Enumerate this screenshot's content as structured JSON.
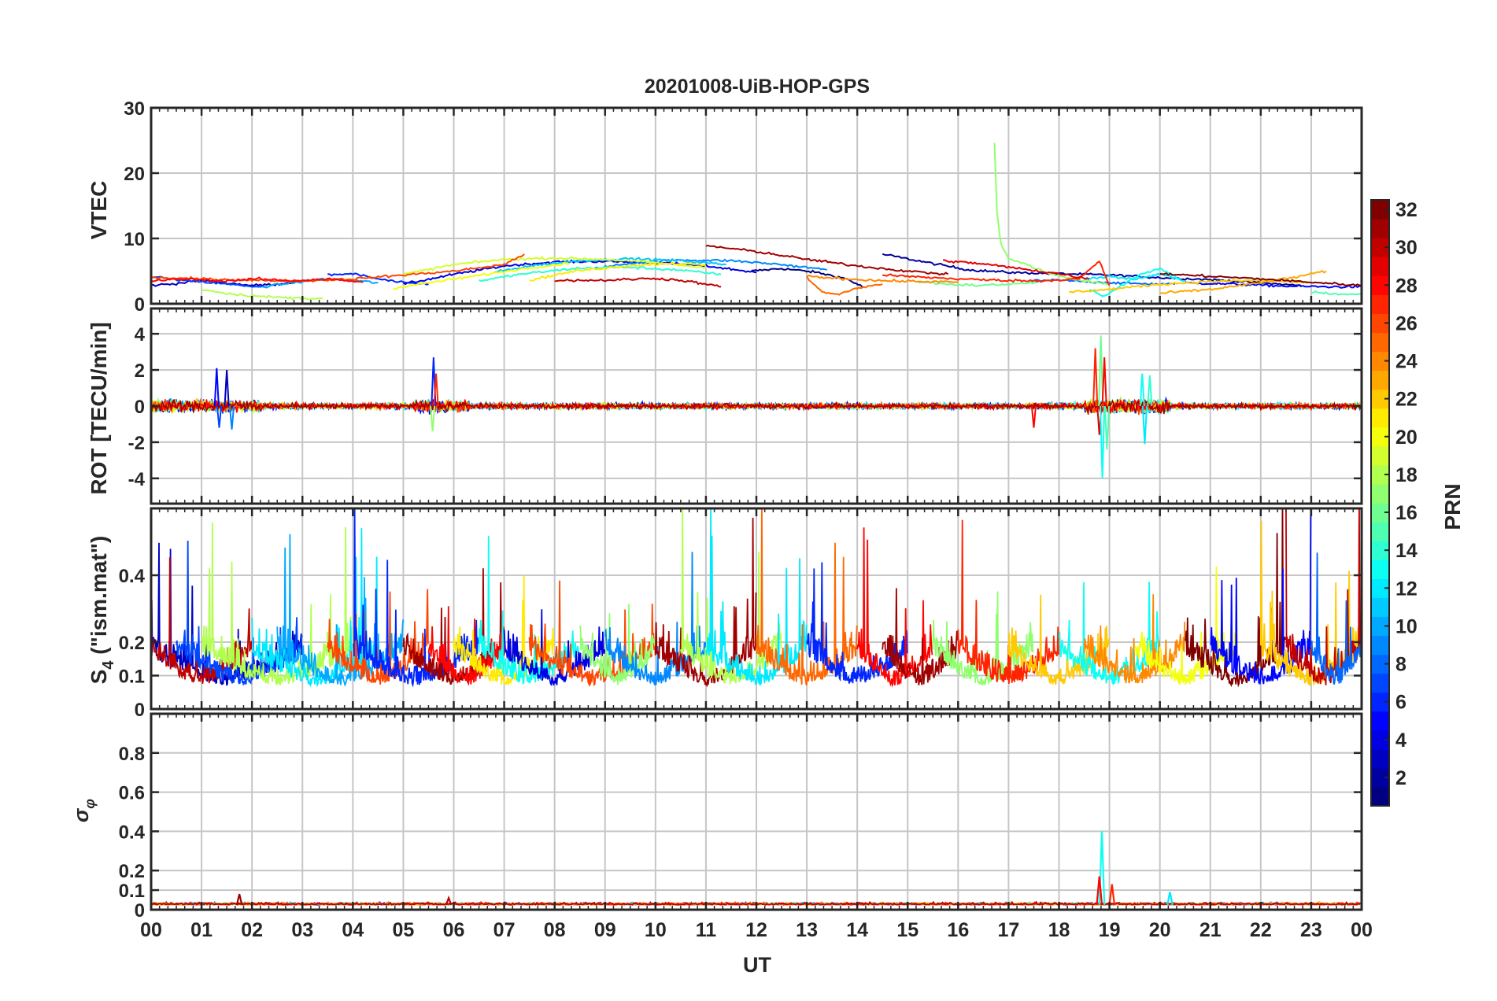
{
  "title": "20201008-UiB-HOP-GPS",
  "chart_data": {
    "type": "line",
    "x_label": "UT",
    "x_ticks": [
      "00",
      "01",
      "02",
      "03",
      "04",
      "05",
      "06",
      "07",
      "08",
      "09",
      "10",
      "11",
      "12",
      "13",
      "14",
      "15",
      "16",
      "17",
      "18",
      "19",
      "20",
      "21",
      "22",
      "23",
      "00"
    ],
    "xlim": [
      0,
      24
    ],
    "panels": [
      {
        "id": "vtec",
        "ylabel": "VTEC",
        "ylim": [
          0,
          30
        ],
        "yticks": [
          0,
          10,
          20,
          30
        ],
        "ytick_labels": [
          "0",
          "10",
          "20",
          "30"
        ],
        "series": [
          {
            "prn": 1,
            "x": [
              11.9,
              12.5,
              13.2,
              13.8,
              14.1
            ],
            "y": [
              5.0,
              5.4,
              4.8,
              3.8,
              2.6
            ]
          },
          {
            "prn": 2,
            "x": [
              14.5,
              15.4,
              16.2,
              17.0,
              18.0,
              19.0,
              20.0,
              21.0,
              22.0,
              22.8
            ],
            "y": [
              7.6,
              6.3,
              5.2,
              4.8,
              4.6,
              4.4,
              4.0,
              3.7,
              3.2,
              2.8
            ]
          },
          {
            "prn": 3,
            "x": [
              0.0,
              0.5,
              1.0,
              1.5,
              2.0,
              2.5,
              3.0
            ],
            "y": [
              2.8,
              3.1,
              3.6,
              3.2,
              2.8,
              3.0,
              3.5
            ]
          },
          {
            "prn": 4,
            "x": [
              5.0,
              6.0,
              7.0,
              8.0,
              9.0,
              10.0,
              11.0,
              12.0
            ],
            "y": [
              3.0,
              4.5,
              5.8,
              6.4,
              6.5,
              6.3,
              5.8,
              4.8
            ]
          },
          {
            "prn": 5,
            "x": [
              20.5,
              21.5,
              22.5,
              23.3,
              24.0
            ],
            "y": [
              3.2,
              3.0,
              2.7,
              2.6,
              2.6
            ]
          },
          {
            "prn": 6,
            "x": [
              3.5,
              4.0,
              4.5,
              5.0,
              5.5
            ],
            "y": [
              4.4,
              4.6,
              3.8,
              3.2,
              3.0
            ]
          },
          {
            "prn": 7,
            "x": [
              0.0,
              0.6,
              1.2,
              1.8,
              2.3
            ],
            "y": [
              4.2,
              3.6,
              3.2,
              2.8,
              2.5
            ]
          },
          {
            "prn": 8,
            "x": [
              17.4,
              18.0,
              18.8,
              19.5,
              20.3
            ],
            "y": [
              3.5,
              3.6,
              3.3,
              3.1,
              3.0
            ]
          },
          {
            "prn": 9,
            "x": [
              8.8,
              9.6,
              10.5,
              11.5,
              12.5,
              13.4
            ],
            "y": [
              5.4,
              6.3,
              6.7,
              6.6,
              6.0,
              5.2
            ]
          },
          {
            "prn": 10,
            "x": [
              2.2,
              2.8,
              3.4,
              4.0,
              4.5
            ],
            "y": [
              2.6,
              3.2,
              3.8,
              3.6,
              3.2
            ]
          },
          {
            "prn": 11,
            "x": [
              6.8,
              7.5,
              8.5,
              9.5,
              10.5,
              11.4
            ],
            "y": [
              4.8,
              5.8,
              6.6,
              6.9,
              6.6,
              6.0
            ]
          },
          {
            "prn": 12,
            "x": [
              18.5,
              19.0,
              19.5,
              20.0,
              20.5
            ],
            "y": [
              3.8,
              4.2,
              3.7,
              4.6,
              3.5
            ]
          },
          {
            "prn": 13,
            "x": [
              18.6,
              18.9,
              19.2,
              19.6,
              20.0,
              20.4
            ],
            "y": [
              2.2,
              1.2,
              2.6,
              4.5,
              5.4,
              3.8
            ]
          },
          {
            "prn": 14,
            "x": [
              6.5,
              7.4,
              8.4,
              9.4,
              10.4,
              11.3
            ],
            "y": [
              3.5,
              4.6,
              5.4,
              5.6,
              5.2,
              4.5
            ]
          },
          {
            "prn": 15,
            "x": [
              23.0,
              23.5,
              24.0
            ],
            "y": [
              1.8,
              1.5,
              1.4
            ]
          },
          {
            "prn": 16,
            "x": [
              15.2,
              15.8,
              16.4,
              17.0,
              17.6
            ],
            "y": [
              3.4,
              3.0,
              2.8,
              3.0,
              3.3
            ]
          },
          {
            "prn": 17,
            "x": [
              16.72,
              16.77,
              16.85,
              17.0,
              17.3,
              17.8,
              18.4,
              19.0
            ],
            "y": [
              24.6,
              14.0,
              9.0,
              7.0,
              6.2,
              4.6,
              3.6,
              3.0
            ]
          },
          {
            "prn": 18,
            "x": [
              1.0,
              1.6,
              2.2,
              2.8,
              3.4
            ],
            "y": [
              2.2,
              1.5,
              1.1,
              0.9,
              0.8
            ]
          },
          {
            "prn": 19,
            "x": [
              5.0,
              6.0,
              7.0,
              8.0,
              9.0,
              10.0,
              11.0
            ],
            "y": [
              4.5,
              6.0,
              6.8,
              7.0,
              6.8,
              6.3,
              5.5
            ]
          },
          {
            "prn": 20,
            "x": [
              4.8,
              5.5,
              6.2,
              6.9,
              7.6,
              8.3
            ],
            "y": [
              2.4,
              3.2,
              4.0,
              4.8,
              5.6,
              6.2
            ]
          },
          {
            "prn": 21,
            "x": [
              7.5,
              8.4,
              9.4,
              10.3,
              11.0
            ],
            "y": [
              3.6,
              5.0,
              5.8,
              6.2,
              5.9
            ]
          },
          {
            "prn": 22,
            "x": [
              18.2,
              19.0,
              20.0,
              21.0,
              22.0,
              23.0
            ],
            "y": [
              1.8,
              2.2,
              3.0,
              3.4,
              3.6,
              3.2
            ]
          },
          {
            "prn": 23,
            "x": [
              20.0,
              21.0,
              22.0,
              22.7,
              23.3
            ],
            "y": [
              1.6,
              2.2,
              3.2,
              4.1,
              5.0
            ]
          },
          {
            "prn": 24,
            "x": [
              13.0,
              13.8,
              14.6,
              15.4,
              16.0
            ],
            "y": [
              4.2,
              3.8,
              3.5,
              3.4,
              3.3
            ]
          },
          {
            "prn": 25,
            "x": [
              13.0,
              13.3,
              13.6,
              14.0,
              14.5
            ],
            "y": [
              4.0,
              1.8,
              1.4,
              2.4,
              3.0
            ]
          },
          {
            "prn": 26,
            "x": [
              0.0,
              1.0,
              2.0,
              3.0,
              4.0,
              5.0,
              6.0,
              7.0,
              7.4
            ],
            "y": [
              4.0,
              3.8,
              3.6,
              3.5,
              3.8,
              4.4,
              5.0,
              6.0,
              7.6
            ]
          },
          {
            "prn": 27,
            "x": [
              14.5,
              15.2,
              16.0,
              16.8,
              17.6,
              18.4,
              18.8,
              19.0
            ],
            "y": [
              4.4,
              4.1,
              3.8,
              3.6,
              3.5,
              3.8,
              6.5,
              2.8
            ]
          },
          {
            "prn": 28,
            "x": [
              0.0,
              0.7,
              1.4,
              2.1,
              2.8,
              3.5,
              4.2
            ],
            "y": [
              3.5,
              3.8,
              3.5,
              3.8,
              3.5,
              3.8,
              3.3
            ]
          },
          {
            "prn": 29,
            "x": [
              15.7,
              16.5,
              17.3,
              18.0,
              18.6
            ],
            "y": [
              6.6,
              6.1,
              5.3,
              4.6,
              3.8
            ]
          },
          {
            "prn": 30,
            "x": [
              8.0,
              9.0,
              10.0,
              10.6,
              11.3
            ],
            "y": [
              3.6,
              3.6,
              3.9,
              3.5,
              2.6
            ]
          },
          {
            "prn": 31,
            "x": [
              11.0,
              12.0,
              13.0,
              14.0,
              15.0,
              15.8
            ],
            "y": [
              8.9,
              8.0,
              6.8,
              5.8,
              5.0,
              4.5
            ]
          },
          {
            "prn": 32,
            "x": [
              20.0,
              21.0,
              22.0,
              23.0,
              24.0
            ],
            "y": [
              4.6,
              4.2,
              3.8,
              3.3,
              2.8
            ]
          }
        ]
      },
      {
        "id": "rot",
        "ylabel": "ROT [TECU/min]",
        "ylim": [
          -5.4,
          5.4
        ],
        "yticks": [
          -4,
          -2,
          0,
          2,
          4
        ],
        "ytick_labels": [
          "-4",
          "-2",
          "0",
          "2",
          "4"
        ],
        "baseline_noise": 0.14,
        "spikes": [
          {
            "x": 1.3,
            "y": 2.1,
            "prn": 5
          },
          {
            "x": 1.35,
            "y": -1.2,
            "prn": 7
          },
          {
            "x": 1.5,
            "y": 2.0,
            "prn": 3
          },
          {
            "x": 1.6,
            "y": -1.3,
            "prn": 9
          },
          {
            "x": 5.6,
            "y": 2.7,
            "prn": 6
          },
          {
            "x": 5.58,
            "y": -1.4,
            "prn": 17
          },
          {
            "x": 5.65,
            "y": 1.8,
            "prn": 27
          },
          {
            "x": 18.72,
            "y": 3.2,
            "prn": 27
          },
          {
            "x": 18.8,
            "y": -1.6,
            "prn": 29
          },
          {
            "x": 18.83,
            "y": 3.9,
            "prn": 16
          },
          {
            "x": 18.86,
            "y": -4.0,
            "prn": 13
          },
          {
            "x": 18.9,
            "y": 2.7,
            "prn": 28
          },
          {
            "x": 18.95,
            "y": -2.4,
            "prn": 15
          },
          {
            "x": 19.65,
            "y": 1.8,
            "prn": 13
          },
          {
            "x": 19.7,
            "y": -2.1,
            "prn": 12
          },
          {
            "x": 19.8,
            "y": 1.7,
            "prn": 14
          },
          {
            "x": 17.5,
            "y": -1.2,
            "prn": 28
          }
        ]
      },
      {
        "id": "s4",
        "ylabel": "S4 (\"ism.mat\")",
        "ylabel_main": "S",
        "ylabel_sub": "4",
        "ylabel_rest": " (\"ism.mat\")",
        "ylim": [
          0,
          0.6
        ],
        "yticks": [
          0,
          0.1,
          0.2,
          0.4
        ],
        "ytick_labels": [
          "0",
          "0.1",
          "0.2",
          "0.4"
        ],
        "segments": [
          {
            "start": 0.0,
            "end": 3.0,
            "prn": 3
          },
          {
            "start": 0.0,
            "end": 2.0,
            "prn": 30
          },
          {
            "start": 0.5,
            "end": 3.0,
            "prn": 7
          },
          {
            "start": 1.0,
            "end": 4.0,
            "prn": 18
          },
          {
            "start": 2.0,
            "end": 4.5,
            "prn": 12
          },
          {
            "start": 2.5,
            "end": 5.0,
            "prn": 10
          },
          {
            "start": 3.5,
            "end": 5.5,
            "prn": 26
          },
          {
            "start": 4.0,
            "end": 6.5,
            "prn": 6
          },
          {
            "start": 5.0,
            "end": 7.0,
            "prn": 31
          },
          {
            "start": 5.5,
            "end": 7.0,
            "prn": 28
          },
          {
            "start": 6.0,
            "end": 8.0,
            "prn": 21
          },
          {
            "start": 6.5,
            "end": 8.5,
            "prn": 13
          },
          {
            "start": 7.0,
            "end": 9.0,
            "prn": 4
          },
          {
            "start": 7.5,
            "end": 10.0,
            "prn": 26
          },
          {
            "start": 8.5,
            "end": 10.0,
            "prn": 17
          },
          {
            "start": 9.0,
            "end": 11.0,
            "prn": 9
          },
          {
            "start": 10.0,
            "end": 12.0,
            "prn": 31
          },
          {
            "start": 10.5,
            "end": 12.5,
            "prn": 18
          },
          {
            "start": 11.0,
            "end": 13.0,
            "prn": 12
          },
          {
            "start": 12.0,
            "end": 14.0,
            "prn": 25
          },
          {
            "start": 13.0,
            "end": 15.0,
            "prn": 6
          },
          {
            "start": 14.0,
            "end": 15.5,
            "prn": 28
          },
          {
            "start": 14.5,
            "end": 16.0,
            "prn": 31
          },
          {
            "start": 15.5,
            "end": 17.5,
            "prn": 17
          },
          {
            "start": 16.0,
            "end": 18.0,
            "prn": 27
          },
          {
            "start": 17.0,
            "end": 19.0,
            "prn": 22
          },
          {
            "start": 18.0,
            "end": 20.0,
            "prn": 13
          },
          {
            "start": 18.5,
            "end": 20.5,
            "prn": 24
          },
          {
            "start": 19.5,
            "end": 21.5,
            "prn": 20
          },
          {
            "start": 20.5,
            "end": 22.5,
            "prn": 32
          },
          {
            "start": 21.0,
            "end": 23.0,
            "prn": 5
          },
          {
            "start": 22.0,
            "end": 24.0,
            "prn": 22
          },
          {
            "start": 22.5,
            "end": 24.0,
            "prn": 30
          },
          {
            "start": 23.0,
            "end": 24.0,
            "prn": 8
          }
        ]
      },
      {
        "id": "sigma_phi",
        "ylabel": "σ φ",
        "ylabel_main": "σ",
        "ylabel_sub": "φ",
        "ylim": [
          0,
          1
        ],
        "yticks": [
          0,
          0.1,
          0.2,
          0.4,
          0.6,
          0.8
        ],
        "ytick_labels": [
          "0",
          "0.1",
          "0.2",
          "0.4",
          "0.6",
          "0.8"
        ],
        "baseline": 0.025,
        "spikes": [
          {
            "x": 18.85,
            "y": 0.4,
            "prn": 13
          },
          {
            "x": 18.8,
            "y": 0.17,
            "prn": 28
          },
          {
            "x": 19.05,
            "y": 0.13,
            "prn": 27
          },
          {
            "x": 1.75,
            "y": 0.08,
            "prn": 31
          },
          {
            "x": 5.9,
            "y": 0.06,
            "prn": 30
          },
          {
            "x": 20.2,
            "y": 0.09,
            "prn": 12
          }
        ]
      }
    ],
    "colorbar": {
      "label": "PRN",
      "min": 1,
      "max": 32,
      "ticks": [
        2,
        4,
        6,
        8,
        10,
        12,
        14,
        16,
        18,
        20,
        22,
        24,
        26,
        28,
        30,
        32
      ],
      "tick_labels": [
        "2",
        "4",
        "6",
        "8",
        "10",
        "12",
        "14",
        "16",
        "18",
        "20",
        "22",
        "24",
        "26",
        "28",
        "30",
        "32"
      ],
      "colormap": "jet"
    }
  }
}
